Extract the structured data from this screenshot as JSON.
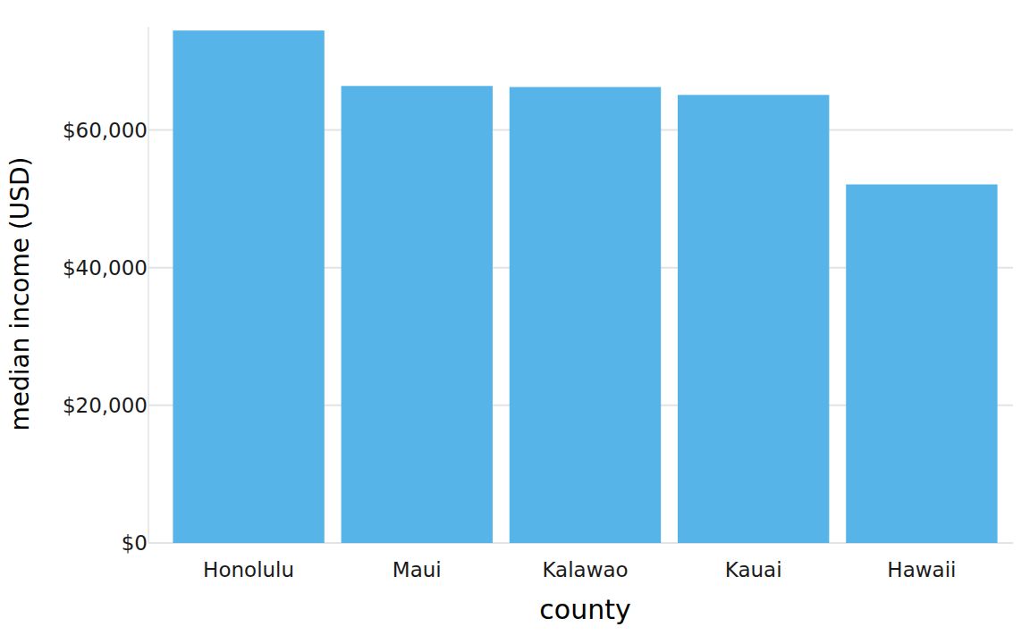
{
  "chart_data": {
    "type": "bar",
    "categories": [
      "Honolulu",
      "Maui",
      "Kalawao",
      "Kauai",
      "Hawaii"
    ],
    "values": [
      74460,
      66400,
      66250,
      65100,
      52100
    ],
    "color": "#56B4E9",
    "x_label": "county",
    "y_label": "median income (USD)",
    "ylim": [
      0,
      75000
    ],
    "yticks": [
      {
        "value": 0,
        "label": "$0"
      },
      {
        "value": 20000,
        "label": "$20,000"
      },
      {
        "value": 40000,
        "label": "$40,000"
      },
      {
        "value": 60000,
        "label": "$60,000"
      }
    ],
    "grid": true
  }
}
